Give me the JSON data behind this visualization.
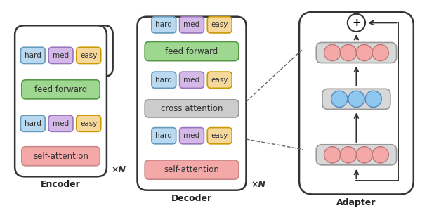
{
  "encoder_label": "Encoder",
  "decoder_label": "Decoder",
  "adapter_label": "Adapter",
  "xN_label": "×N",
  "colors": {
    "hard": "#b8d9f0",
    "med": "#d4b8e8",
    "easy": "#f5d89a",
    "feed_forward": "#9ed890",
    "self_attention": "#f5a8a8",
    "cross_attention": "#cccccc",
    "pink_circle": "#f5a8a8",
    "blue_circle": "#8ec8f0",
    "neuron_bg": "#d8d8d8",
    "neuron_ec": "#999999",
    "outer_box_ec": "#333333",
    "token_ec_hard": "#6699bb",
    "token_ec_med": "#9977bb",
    "token_ec_easy": "#cc9900"
  },
  "fig_w": 6.08,
  "fig_h": 2.96,
  "dpi": 100
}
